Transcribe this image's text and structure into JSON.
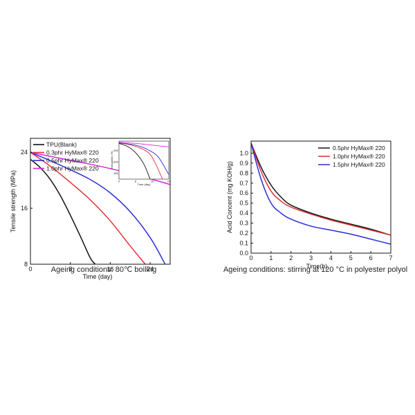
{
  "chart_data": [
    {
      "type": "line",
      "xlabel": "Time (day)",
      "ylabel": "Tensile strength (MPa)",
      "xlim": [
        0,
        28
      ],
      "ylim": [
        8,
        26
      ],
      "xticks": [
        0,
        8,
        16,
        24
      ],
      "yticks": [
        8,
        16,
        24
      ],
      "caption": "Ageing conditions: 80℃ boiling",
      "series": [
        {
          "name": "TPU(Blank)",
          "color": "#111111",
          "x": [
            0,
            2,
            4,
            6,
            8,
            10,
            12,
            13
          ],
          "y": [
            23.0,
            21.8,
            20.1,
            17.8,
            15.0,
            12.0,
            8.9,
            8.0
          ]
        },
        {
          "name": "0.3phr HyMax® 220",
          "color": "#e03030",
          "x": [
            0,
            4,
            8,
            12,
            16,
            20,
            23
          ],
          "y": [
            24.0,
            22.0,
            19.7,
            17.2,
            14.2,
            10.6,
            8.0
          ]
        },
        {
          "name": "0.5phr HyMax® 220",
          "color": "#2b2bd8",
          "x": [
            0,
            4,
            8,
            12,
            16,
            20,
            24,
            27
          ],
          "y": [
            24.0,
            22.8,
            21.5,
            20.1,
            18.2,
            15.5,
            11.8,
            8.0
          ]
        },
        {
          "name": "1.0phr HyMax® 220",
          "color": "#dd22dd",
          "x": [
            0,
            7,
            14,
            21,
            28
          ],
          "y": [
            24.0,
            23.0,
            22.0,
            20.8,
            19.4
          ]
        }
      ],
      "inset": {
        "xlabel": "Time (day)",
        "ylabel": "Elongation (%)",
        "xticks": [
          0,
          8,
          16,
          24
        ],
        "yticks": [
          300,
          400,
          500
        ],
        "xlim": [
          0,
          24
        ],
        "ylim": [
          250,
          580
        ],
        "series": [
          {
            "name": "TPU(Blank)",
            "color": "#111111",
            "x": [
              0,
              4,
              8,
              12,
              15
            ],
            "y": [
              560,
              535,
              480,
              380,
              250
            ]
          },
          {
            "name": "0.3phr HyMax® 220",
            "color": "#e03030",
            "x": [
              0,
              6,
              12,
              16,
              21
            ],
            "y": [
              565,
              545,
              505,
              440,
              250
            ]
          },
          {
            "name": "0.5phr HyMax® 220",
            "color": "#2b2bd8",
            "x": [
              0,
              8,
              14,
              19,
              24
            ],
            "y": [
              565,
              545,
              505,
              440,
              290
            ]
          },
          {
            "name": "1.0phr HyMax® 220",
            "color": "#dd22dd",
            "x": [
              0,
              8,
              16,
              24
            ],
            "y": [
              570,
              560,
              545,
              530
            ]
          }
        ]
      }
    },
    {
      "type": "line",
      "xlabel": "Time(h)",
      "ylabel": "Acid Concent (mg KOH/g)",
      "xlim": [
        0,
        7
      ],
      "ylim": [
        0,
        1.12
      ],
      "xticks": [
        0,
        1,
        2,
        3,
        4,
        5,
        6,
        7
      ],
      "yticks": [
        0.0,
        0.1,
        0.2,
        0.3,
        0.4,
        0.5,
        0.6,
        0.7,
        0.8,
        0.9,
        1.0
      ],
      "ytick_labels": [
        "0.0",
        "0.1",
        "0.2",
        "0.3",
        "0.4",
        "0.5",
        "0.6",
        "0.7",
        "0.8",
        "0.9",
        "1.0"
      ],
      "caption": "Ageing conditions: stirring at 120 °C in polyester polyol",
      "series": [
        {
          "name": "0.5phr HyMax® 220",
          "color": "#111111",
          "x": [
            0,
            0.5,
            1,
            1.5,
            2,
            3,
            4,
            5,
            6,
            7
          ],
          "y": [
            1.1,
            0.86,
            0.68,
            0.56,
            0.48,
            0.4,
            0.34,
            0.29,
            0.24,
            0.18
          ]
        },
        {
          "name": "1.0phr HyMax® 220",
          "color": "#e03030",
          "x": [
            0,
            0.5,
            1,
            1.5,
            2,
            3,
            4,
            5,
            6,
            7
          ],
          "y": [
            1.1,
            0.82,
            0.62,
            0.52,
            0.46,
            0.39,
            0.33,
            0.28,
            0.23,
            0.18
          ]
        },
        {
          "name": "1.5phr HyMax® 220",
          "color": "#2b2bd8",
          "x": [
            0,
            0.5,
            1,
            1.5,
            2,
            3,
            4,
            5,
            6,
            7
          ],
          "y": [
            1.1,
            0.74,
            0.5,
            0.4,
            0.34,
            0.27,
            0.23,
            0.19,
            0.14,
            0.09
          ]
        }
      ]
    }
  ]
}
